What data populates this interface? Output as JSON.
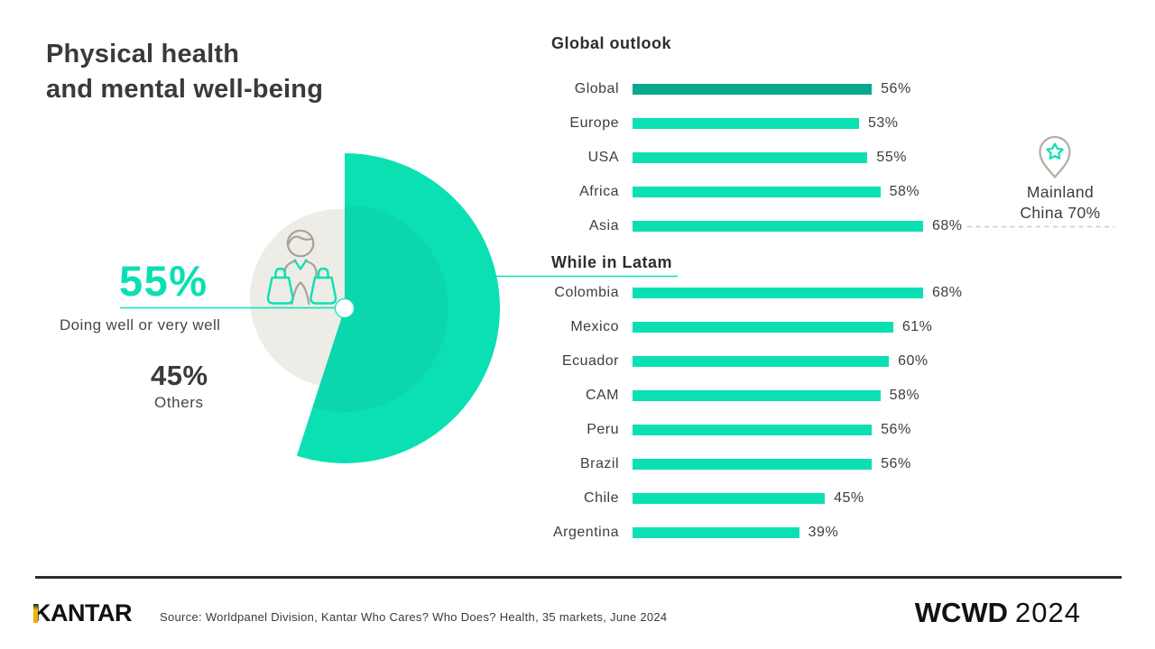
{
  "header": {
    "title_line1": "Physical health",
    "title_line2": "and mental well-being"
  },
  "pie_callout": {
    "main_value": "55%",
    "main_caption": "Doing well or very well",
    "others_value": "45%",
    "others_caption": "Others"
  },
  "china_annotation": {
    "line1": "Mainland",
    "line2": "China 70%",
    "icon": "map-pin-star-icon"
  },
  "chart_data": [
    {
      "type": "pie",
      "slices": [
        {
          "label": "Doing well or very well",
          "value": 55,
          "color": "#0BE0B3"
        },
        {
          "label": "Others",
          "value": 45,
          "color": "#EDECE7"
        }
      ],
      "start_angle": "top",
      "direction": "clockwise",
      "center_icon": "shopper-with-bags-icon"
    },
    {
      "type": "bar",
      "orientation": "horizontal",
      "title": "Global outlook",
      "unit": "%",
      "categories": [
        "Global",
        "Europe",
        "USA",
        "Africa",
        "Asia"
      ],
      "values": [
        56,
        53,
        55,
        58,
        68
      ],
      "highlight_index": 0,
      "annotation": "Mainland China 70%",
      "xlim": [
        0,
        70
      ],
      "grid": false,
      "legend": "none"
    },
    {
      "type": "bar",
      "orientation": "horizontal",
      "title": "While in Latam",
      "unit": "%",
      "categories": [
        "Colombia",
        "Mexico",
        "Ecuador",
        "CAM",
        "Peru",
        "Brazil",
        "Chile",
        "Argentina"
      ],
      "values": [
        68,
        61,
        60,
        58,
        56,
        56,
        45,
        39
      ],
      "xlim": [
        0,
        70
      ],
      "grid": false,
      "legend": "none"
    }
  ],
  "colors": {
    "accent_teal": "#0BE0B3",
    "accent_teal_dark": "#05A98C",
    "pie_inner_shade": "#0CD6AC",
    "circle_gray": "#EDECE7",
    "text_dark": "#3A3A3A",
    "dashed_line_gray": "#CFCBC2",
    "pin_outline": "#B5B0A4",
    "icon_gray": "#A8A298",
    "kantar_gold": "#EFB902"
  },
  "footer": {
    "brand": "KANTAR",
    "source": "Source: Worldpanel Division, Kantar Who Cares? Who Does? Health, 35 markets, June 2024",
    "event_name": "WCWD",
    "event_year": "2024"
  }
}
